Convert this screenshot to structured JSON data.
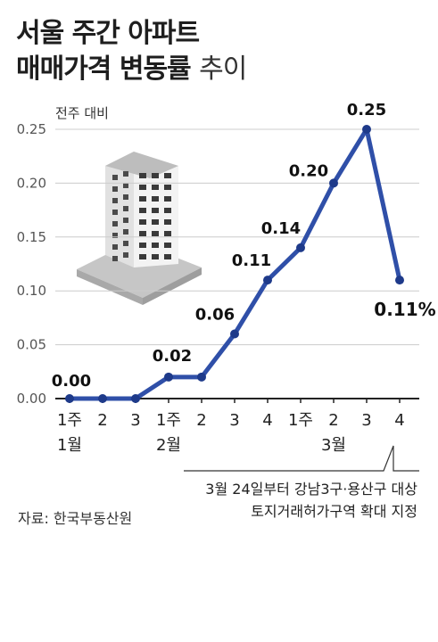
{
  "title": {
    "line1": "서울 주간 아파트",
    "line2_bold": "매매가격 변동률",
    "line2_light": "추이"
  },
  "source": "자료: 한국부동산원",
  "annotation": {
    "line1": "3월 24일부터 강남3구·용산구 대상",
    "line2": "토지거래허가구역 확대 지정"
  },
  "colors": {
    "line": "#2f4fa8",
    "axis": "#222222",
    "grid": "#cccccc",
    "building": "#c9c9c9"
  },
  "icon": "apartment-building-illustration",
  "chart_data": {
    "type": "line",
    "ylabel": "전주 대비",
    "ylim": [
      0,
      0.25
    ],
    "yticks": [
      "0.25",
      "0.20",
      "0.15",
      "0.10",
      "0.05",
      "0.00"
    ],
    "x_week_labels": [
      "1주",
      "2",
      "3",
      "1주",
      "2",
      "3",
      "4",
      "1주",
      "2",
      "3",
      "4"
    ],
    "x_month_labels": [
      {
        "label": "1월",
        "index": 0
      },
      {
        "label": "2월",
        "index": 3
      },
      {
        "label": "3월",
        "index": 8
      }
    ],
    "series": [
      {
        "values": [
          0.0,
          0.0,
          0.0,
          0.02,
          0.02,
          0.06,
          0.11,
          0.14,
          0.2,
          0.25,
          0.11
        ]
      }
    ],
    "data_labels": [
      {
        "index": 0,
        "text": "0.00"
      },
      {
        "index": 3,
        "text": "0.02"
      },
      {
        "index": 5,
        "text": "0.06"
      },
      {
        "index": 6,
        "text": "0.11"
      },
      {
        "index": 7,
        "text": "0.14"
      },
      {
        "index": 8,
        "text": "0.20"
      },
      {
        "index": 9,
        "text": "0.25"
      },
      {
        "index": 10,
        "text": "0.11%"
      }
    ],
    "grid": true
  }
}
